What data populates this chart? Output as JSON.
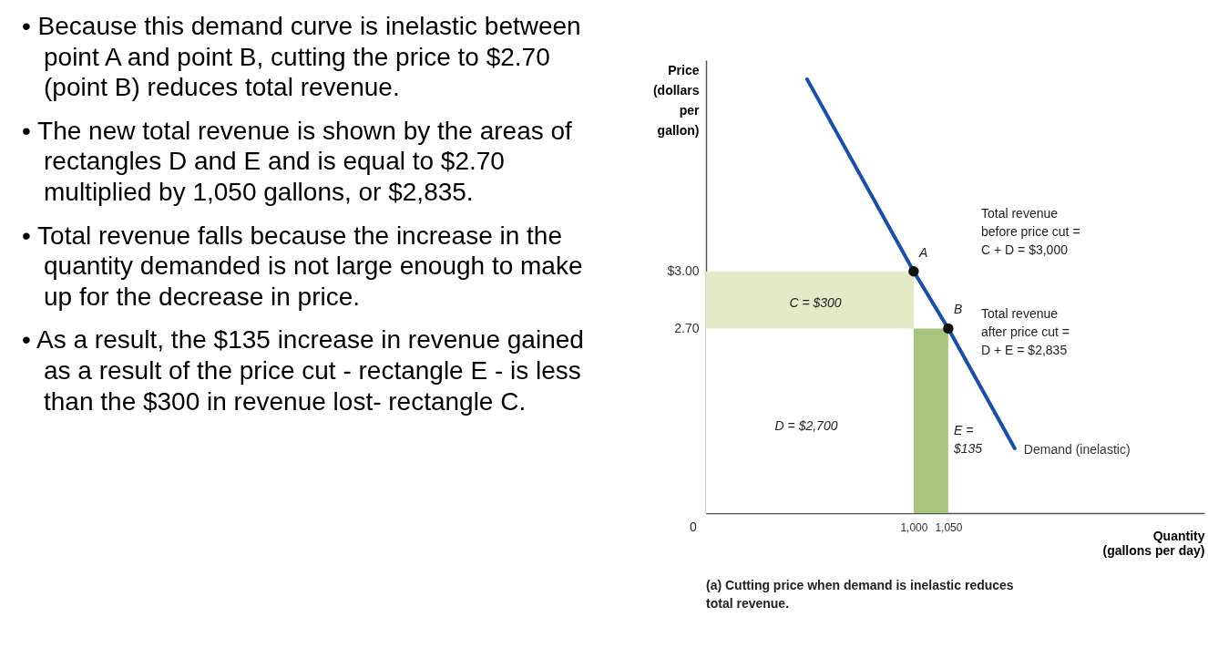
{
  "chart_data": {
    "type": "line",
    "xlabel": "Quantity (gallons per day)",
    "ylabel": "Price (dollars per gallon)",
    "xlim": [
      700,
      1420
    ],
    "ylim": [
      1.73,
      4.11
    ],
    "xticks": [
      {
        "value": 1000,
        "label": "1,000"
      },
      {
        "value": 1050,
        "label": "1,050"
      }
    ],
    "yticks": [
      {
        "value": 2.7,
        "label": "2.70"
      },
      {
        "value": 3,
        "label": "$3.00"
      }
    ],
    "grid": false,
    "series": [
      {
        "type": "area",
        "color": "#e4eac8",
        "x": [
          700,
          1000
        ],
        "values": [
          3.0,
          3.0
        ]
      },
      {
        "type": "area",
        "color": "#ffffff",
        "x": [
          700,
          1000
        ],
        "values": [
          2.7,
          2.7
        ]
      },
      {
        "type": "area",
        "color": "#a9c47e",
        "x": [
          1000,
          1050
        ],
        "values": [
          2.7,
          2.7
        ]
      },
      {
        "name": "Demand (inelastic)",
        "color": "#1a4fa3",
        "marker": "none",
        "x": [
          846,
          1000,
          1050,
          1146
        ],
        "values": [
          4.01,
          3.0,
          2.7,
          2.07
        ]
      },
      {
        "type": "scatter",
        "color": "#111111",
        "marker": "circle",
        "x": [
          1000,
          1050
        ],
        "values": [
          3.0,
          2.7
        ]
      }
    ],
    "annotations": [
      "• Because this demand curve is inelastic between point A and point B, cutting the price to $2.70 (point B) reduces total revenue.",
      "• The new total revenue is shown by the areas of rectangles D and E and is equal to $2.70 multiplied by 1,050 gallons, or $2,835.",
      "• Total revenue falls because the increase in the quantity demanded is not large enough to make up for the decrease in price.",
      "• As a result, the $135 increase in revenue gained as a result of the price cut - rectangle E - is less than the $300 in revenue lost- rectangle C.",
      {
        "text": "A",
        "x": 1000,
        "y": 3.0
      },
      {
        "text": "B",
        "x": 1050,
        "y": 2.7
      },
      "C = $300",
      "D = $2,700",
      "E = $135",
      "Total revenue before price cut = C + D = $3,000",
      "Total revenue after price cut = D + E = $2,835",
      "0",
      "(a) Cutting price when demand is inelastic reduces total revenue."
    ]
  }
}
